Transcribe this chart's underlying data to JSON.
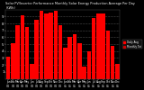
{
  "title": "Solar PV/Inverter Performance Monthly Solar Energy Production Average Per Day (KWh)",
  "bar_color": "#ff0000",
  "background_color": "#000000",
  "plot_bg_color": "#000000",
  "grid_color": "#888888",
  "title_color": "#ffffff",
  "tick_color": "#ffffff",
  "categories": [
    "Jan\n04",
    "Feb\n04",
    "Mar\n04",
    "Apr\n04",
    "May\n04",
    "Jun\n04",
    "Jul\n04",
    "Aug\n04",
    "Sep\n04",
    "Oct\n04",
    "Nov\n04",
    "Dec\n04",
    "Jan\n05",
    "Feb\n05",
    "Mar\n05",
    "Apr\n05",
    "May\n05",
    "Jun\n05",
    "Jul\n05",
    "Aug\n05",
    "Sep\n05",
    "Oct\n05",
    "Nov\n05",
    "Dec\n05"
  ],
  "values": [
    3.2,
    5.1,
    7.8,
    9.2,
    7.5,
    2.1,
    8.5,
    9.8,
    9.5,
    9.6,
    9.8,
    7.8,
    4.5,
    6.0,
    6.5,
    5.2,
    1.8,
    4.0,
    8.8,
    9.5,
    9.4,
    7.0,
    4.8,
    2.2
  ],
  "ylim": [
    0,
    10
  ],
  "yticks": [
    1,
    2,
    3,
    4,
    5,
    6,
    7,
    8,
    9
  ],
  "legend_entries": [
    "Daily Avg",
    "Monthly Tot"
  ],
  "legend_colors": [
    "#ff0000",
    "#cc0000"
  ],
  "figsize": [
    1.6,
    1.0
  ],
  "dpi": 100
}
